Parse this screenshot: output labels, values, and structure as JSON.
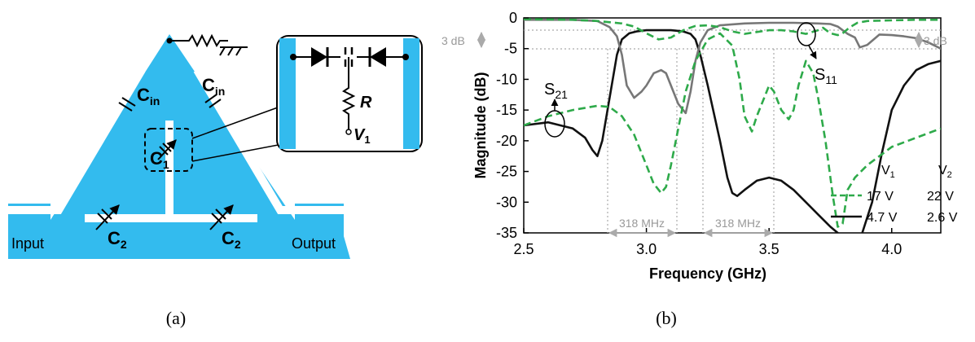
{
  "captions": {
    "a": "(a)",
    "b": "(b)"
  },
  "circuit": {
    "input_label": "Input",
    "output_label": "Output",
    "cin_main": "C",
    "cin_sub": "in",
    "c1_main": "C",
    "c1_sub": "1",
    "c2_main": "C",
    "c2_sub": "2",
    "inset_r": "R",
    "inset_v_main": "V",
    "inset_v_sub": "1",
    "colors": {
      "substrate": "#33bbee",
      "gap": "#ffffff"
    }
  },
  "chart_data": {
    "type": "line",
    "xlabel": "Frequency (GHz)",
    "ylabel": "Magnitude (dB)",
    "xlim": [
      2.5,
      4.2
    ],
    "ylim": [
      -35,
      0
    ],
    "xticks": [
      "2.5",
      "3.0",
      "3.5",
      "4.0"
    ],
    "yticks": [
      "0",
      "-5",
      "-10",
      "-15",
      "-20",
      "-25",
      "-30",
      "-35"
    ],
    "annotations": {
      "s21_main": "S",
      "s21_sub": "21",
      "s11_main": "S",
      "s11_sub": "11",
      "db3_left": "3 dB",
      "db3_right": "3 dB",
      "bw_left": "318 MHz",
      "bw_right": "318 MHz"
    },
    "legend": {
      "header_v1_main": "V",
      "header_v1_sub": "1",
      "header_v2_main": "V",
      "header_v2_sub": "2",
      "rows": [
        {
          "style": "dashed",
          "color": "#2eaa4a",
          "v1": "17 V",
          "v2": "22 V"
        },
        {
          "style": "solid",
          "color": "#111111",
          "v1": "4.7 V",
          "v2": "2.6 V"
        }
      ]
    },
    "series": [
      {
        "key": "s21_lo",
        "style": "solid",
        "color": "#111111",
        "x": [
          2.5,
          2.6,
          2.7,
          2.75,
          2.78,
          2.8,
          2.82,
          2.85,
          2.88,
          2.9,
          2.93,
          2.96,
          3.0,
          3.05,
          3.1,
          3.15,
          3.18,
          3.2,
          3.22,
          3.25,
          3.3,
          3.33,
          3.35,
          3.37,
          3.4,
          3.45,
          3.5,
          3.55,
          3.6,
          3.65,
          3.7,
          3.75,
          3.78,
          3.8,
          3.82,
          3.85,
          3.88,
          3.92,
          3.96,
          4.0,
          4.05,
          4.1,
          4.15,
          4.2
        ],
        "y": [
          -17.5,
          -17,
          -18,
          -19.5,
          -21.5,
          -22.5,
          -20,
          -13,
          -6,
          -3.5,
          -2.5,
          -2.2,
          -2,
          -2,
          -2,
          -2.2,
          -2.6,
          -3.5,
          -6,
          -11,
          -20,
          -26,
          -28.5,
          -29,
          -28,
          -26.5,
          -26,
          -26.5,
          -28,
          -30,
          -32,
          -34,
          -35,
          -36.5,
          -37,
          -36,
          -35,
          -30,
          -22,
          -15,
          -11,
          -8.5,
          -7.5,
          -7
        ]
      },
      {
        "key": "s11_lo",
        "style": "solid",
        "color": "#777777",
        "x": [
          2.5,
          2.7,
          2.8,
          2.85,
          2.88,
          2.9,
          2.92,
          2.95,
          2.98,
          3.0,
          3.03,
          3.06,
          3.08,
          3.1,
          3.13,
          3.16,
          3.18,
          3.2,
          3.22,
          3.25,
          3.3,
          3.4,
          3.5,
          3.6,
          3.7,
          3.75,
          3.78,
          3.8,
          3.82,
          3.85,
          3.87,
          3.9,
          3.95,
          4.0,
          4.05,
          4.1,
          4.15,
          4.2
        ],
        "y": [
          -0.3,
          -0.3,
          -0.5,
          -1.5,
          -3,
          -6,
          -11,
          -13,
          -12,
          -11,
          -9,
          -8.5,
          -9,
          -11,
          -14,
          -15.5,
          -12,
          -7,
          -4,
          -2,
          -1.2,
          -0.9,
          -0.8,
          -0.8,
          -0.9,
          -1,
          -1.4,
          -2,
          -2.6,
          -3.2,
          -4.8,
          -4.4,
          -2.7,
          -2.8,
          -3,
          -3.3,
          -4,
          -5
        ]
      },
      {
        "key": "s21_hi",
        "style": "dashed",
        "color": "#2eaa4a",
        "x": [
          2.5,
          2.6,
          2.7,
          2.8,
          2.85,
          2.9,
          2.95,
          3.0,
          3.03,
          3.06,
          3.08,
          3.1,
          3.13,
          3.16,
          3.2,
          3.25,
          3.3,
          3.35,
          3.38,
          3.4,
          3.43,
          3.45,
          3.48,
          3.5,
          3.52,
          3.55,
          3.58,
          3.6,
          3.62,
          3.65,
          3.68,
          3.7,
          3.73,
          3.76,
          3.78,
          3.8,
          3.82,
          3.85,
          3.9,
          3.95,
          4.0,
          4.1,
          4.2
        ],
        "y": [
          -17.5,
          -16,
          -15,
          -14.3,
          -14.5,
          -16,
          -19,
          -24,
          -27,
          -28.5,
          -27.5,
          -24,
          -18,
          -12,
          -7,
          -3.5,
          -2.5,
          -4.5,
          -10,
          -16,
          -18.5,
          -16,
          -13,
          -11,
          -12,
          -15,
          -16.5,
          -15,
          -11,
          -7,
          -9,
          -13,
          -20,
          -29,
          -34,
          -33.5,
          -28,
          -26,
          -24,
          -22.5,
          -21,
          -19.5,
          -18
        ]
      },
      {
        "key": "s11_hi",
        "style": "dashed",
        "color": "#2eaa4a",
        "x": [
          2.5,
          2.7,
          2.8,
          2.9,
          2.95,
          3.0,
          3.05,
          3.1,
          3.15,
          3.2,
          3.25,
          3.3,
          3.35,
          3.4,
          3.45,
          3.5,
          3.55,
          3.6,
          3.65,
          3.7,
          3.72,
          3.75,
          3.78,
          3.8,
          3.83,
          3.86,
          3.9,
          4.0,
          4.1,
          4.2
        ],
        "y": [
          -0.2,
          -0.3,
          -0.5,
          -0.9,
          -1.4,
          -2.5,
          -3.5,
          -3.2,
          -2,
          -1.3,
          -1.2,
          -1.5,
          -2.2,
          -2.6,
          -2.3,
          -2,
          -2,
          -2.2,
          -2.6,
          -2,
          -1.6,
          -2.5,
          -2.8,
          -2.5,
          -1.5,
          -0.8,
          -0.5,
          -0.4,
          -0.3,
          -0.3
        ]
      }
    ]
  }
}
